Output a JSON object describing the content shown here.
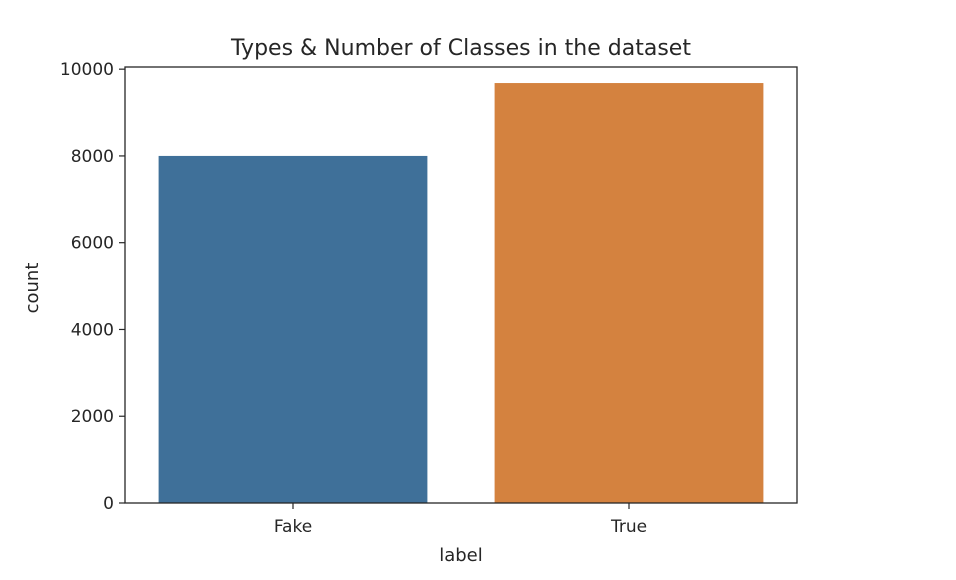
{
  "chart_data": {
    "type": "bar",
    "title": "Types & Number of Classes in the dataset",
    "xlabel": "label",
    "ylabel": "count",
    "categories": [
      "Fake",
      "True"
    ],
    "values": [
      8000,
      9680
    ],
    "colors": [
      "#3f7099",
      "#d4823f"
    ],
    "ylim": [
      0,
      10050
    ],
    "yticks": [
      0,
      2000,
      4000,
      6000,
      8000,
      10000
    ],
    "grid": false
  }
}
